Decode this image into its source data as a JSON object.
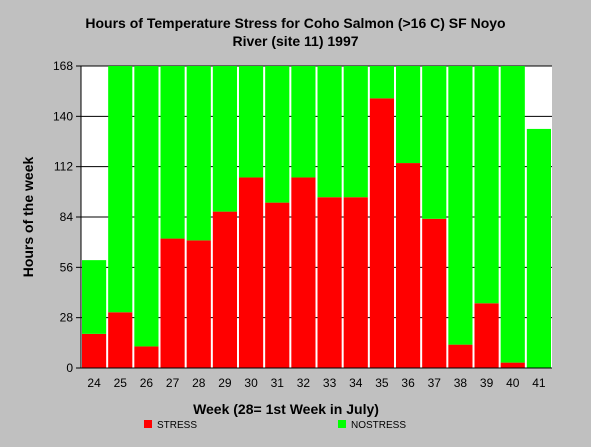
{
  "chart_data": {
    "type": "bar",
    "stacked": true,
    "title_lines": [
      "Hours of Temperature Stress for Coho Salmon (>16 C) SF Noyo",
      "River (site 11) 1997"
    ],
    "xlabel": "Week (28= 1st Week in July)",
    "ylabel": "Hours of the week",
    "ylim": [
      0,
      168
    ],
    "yticks": [
      0,
      28,
      56,
      84,
      112,
      140,
      168
    ],
    "grid": "horizontal",
    "legend_position": "bottom",
    "categories": [
      "24",
      "25",
      "26",
      "27",
      "28",
      "29",
      "30",
      "31",
      "32",
      "33",
      "34",
      "35",
      "36",
      "37",
      "38",
      "39",
      "40",
      "41"
    ],
    "series": [
      {
        "name": "STRESS",
        "color": "#ff0000",
        "values": [
          19,
          31,
          12,
          72,
          71,
          87,
          106,
          92,
          106,
          95,
          95,
          150,
          114,
          83,
          13,
          36,
          3,
          0
        ]
      },
      {
        "name": "NOSTRESS",
        "color": "#00ff00",
        "values": [
          41,
          137,
          156,
          96,
          97,
          81,
          62,
          76,
          62,
          73,
          73,
          18,
          54,
          85,
          155,
          132,
          165,
          133
        ]
      }
    ]
  }
}
